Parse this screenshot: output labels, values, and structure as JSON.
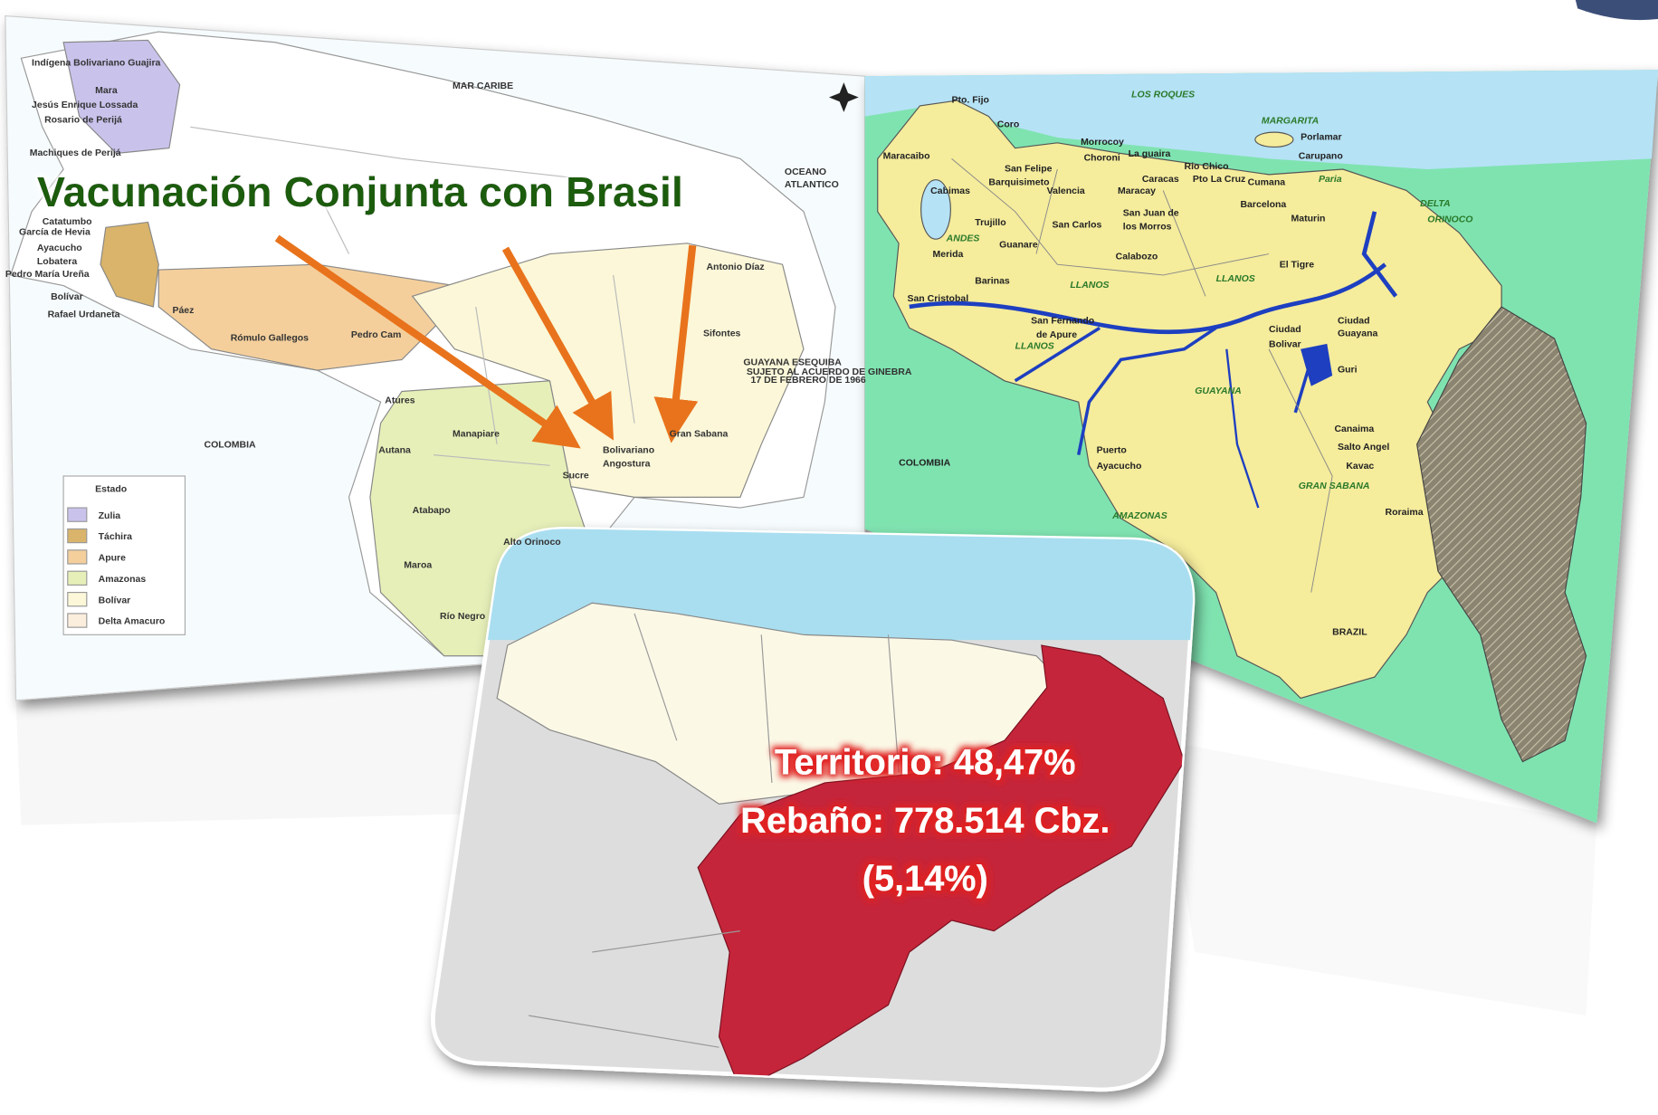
{
  "title": "Vacunación Conjunta con Brasil",
  "left_map": {
    "labels": [
      "Indígena Bolivariano Guajira",
      "Mara",
      "Jesús Enrique Lossada",
      "Rosario de Perijá",
      "Machiques de Perijá",
      "Catatumbo",
      "García de Hevia",
      "Ayacucho",
      "Lobatera",
      "Pedro María Ureña",
      "Bolívar",
      "Rafael Urdaneta",
      "Páez",
      "Rómulo Gallegos",
      "Pedro Cam",
      "MAR CARIBE",
      "OCEANO",
      "ATLANTICO",
      "Antonio Díaz",
      "Sifontes",
      "GUAYANA ESEQUIBA",
      "SUJETO AL ACUERDO DE GINEBRA",
      "17 DE FEBRERO DE 1966",
      "COLOMBIA",
      "Atures",
      "Autana",
      "Manapiare",
      "Bolivariano",
      "Angostura",
      "Sucre",
      "Gran Sabana",
      "Atabapo",
      "Alto Orinoco",
      "Maroa",
      "Río Negro"
    ],
    "legend": {
      "title": "Estado",
      "items": [
        "Zulia",
        "Táchira",
        "Apure",
        "Amazonas",
        "Bolívar",
        "Delta Amacuro"
      ]
    }
  },
  "right_map": {
    "labels": [
      "Pto. Fijo",
      "Coro",
      "Maracaibo",
      "Cabimas",
      "San Felipe",
      "Barquisimeto",
      "Valencia",
      "Morrocoy",
      "Choroni",
      "La guaira",
      "Caracas",
      "Maracay",
      "Rio Chico",
      "Pto La Cruz",
      "Cumana",
      "Barcelona",
      "Maturin",
      "Trujillo",
      "Merida",
      "Guanare",
      "San Carlos",
      "San Juan de",
      "los Morros",
      "Calabozo",
      "El Tigre",
      "Barinas",
      "San Cristobal",
      "San Fernando",
      "de Apure",
      "Ciudad",
      "Bolivar",
      "Ciudad",
      "Guayana",
      "Guri",
      "COLOMBIA",
      "Puerto",
      "Ayacucho",
      "Canaima",
      "Salto Angel",
      "Kavac",
      "Roraima",
      "BRAZIL"
    ],
    "region_labels": [
      "LOS ROQUES",
      "MARGARITA",
      "Porlamar",
      "Carupano",
      "Paria",
      "DELTA",
      "ORINOCO",
      "ANDES",
      "LLANOS",
      "LLANOS",
      "LLANOS",
      "GUAYANA",
      "GRAN SABANA",
      "AMAZONAS"
    ]
  },
  "inset": {
    "lines": [
      "Territorio: 48,47%",
      "Rebaño: 778.514 Cbz.",
      "(5,14%)"
    ]
  }
}
